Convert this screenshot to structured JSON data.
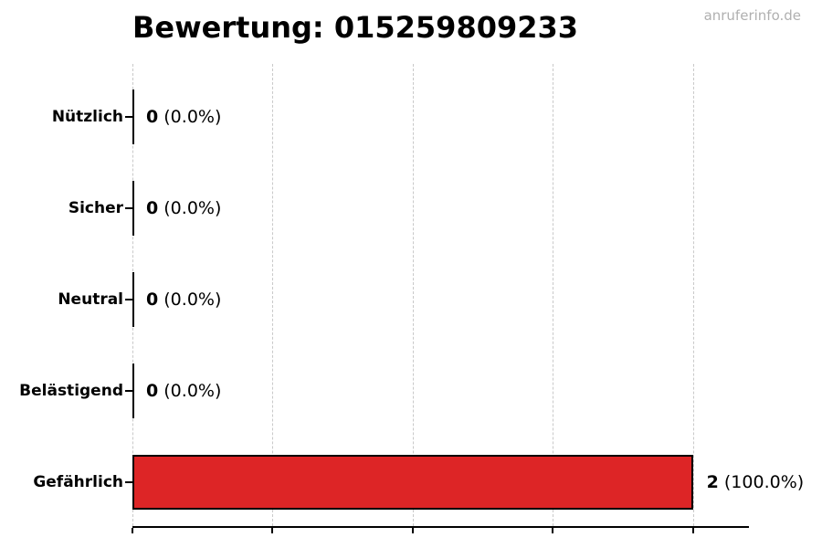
{
  "watermark": {
    "text": "anruferinfo.de",
    "color": "#b0b0b0"
  },
  "chart_data": {
    "type": "bar",
    "orientation": "horizontal",
    "title": "Bewertung: 015259809233",
    "categories": [
      "Nützlich",
      "Sicher",
      "Neutral",
      "Belästigend",
      "Gefährlich"
    ],
    "values": [
      0,
      0,
      0,
      0,
      2
    ],
    "percentages": [
      0.0,
      0.0,
      0.0,
      0.0,
      100.0
    ],
    "value_labels": [
      "0 (0.0%)",
      "0 (0.0%)",
      "0 (0.0%)",
      "0 (0.0%)",
      "2 (100.0%)"
    ],
    "value_suffixes": [
      " (0.0%)",
      " (0.0%)",
      " (0.0%)",
      " (0.0%)",
      " (100.0%)"
    ],
    "xlabel": "",
    "ylabel": "",
    "xlim": [
      0,
      2.2
    ],
    "xticks": [
      0,
      0.5,
      1.0,
      1.5,
      2.0
    ],
    "xtick_labels_visible": false,
    "grid": "vertical-dashed",
    "legend": "none",
    "bar_color": "#dd2526",
    "bar_edge_color": "#000000",
    "grid_color": "#c9c9c9",
    "axis_color": "#000000",
    "text_color": "#000000"
  }
}
